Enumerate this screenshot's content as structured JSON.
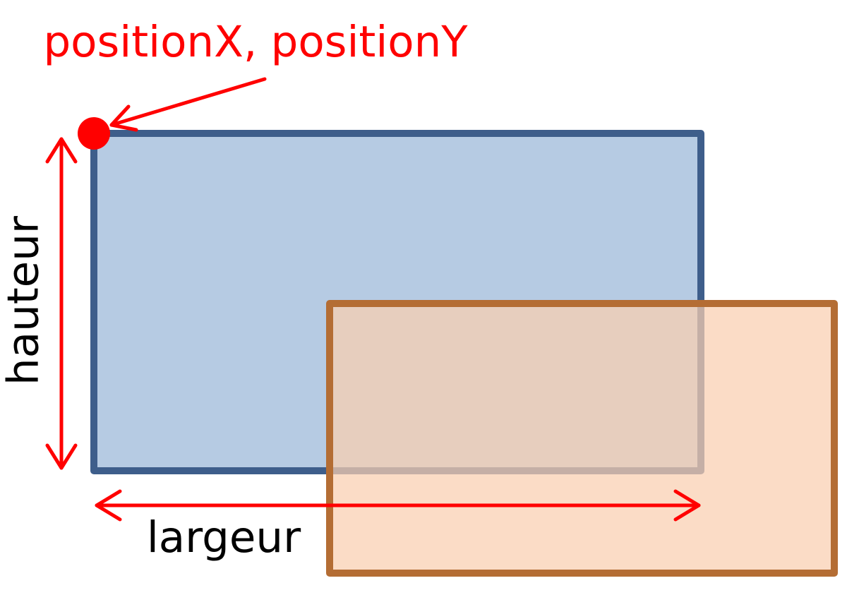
{
  "labels": {
    "position": "positionX, positionY",
    "height": "hauteur",
    "width": "largeur"
  },
  "colors": {
    "annotation": "#ff0000",
    "blue_rect_fill": "#b6cbe3",
    "blue_rect_stroke": "#3e5e8b",
    "orange_rect_fill": "#f9cfb0",
    "orange_rect_stroke": "#b46d34",
    "text_black": "#000000"
  }
}
